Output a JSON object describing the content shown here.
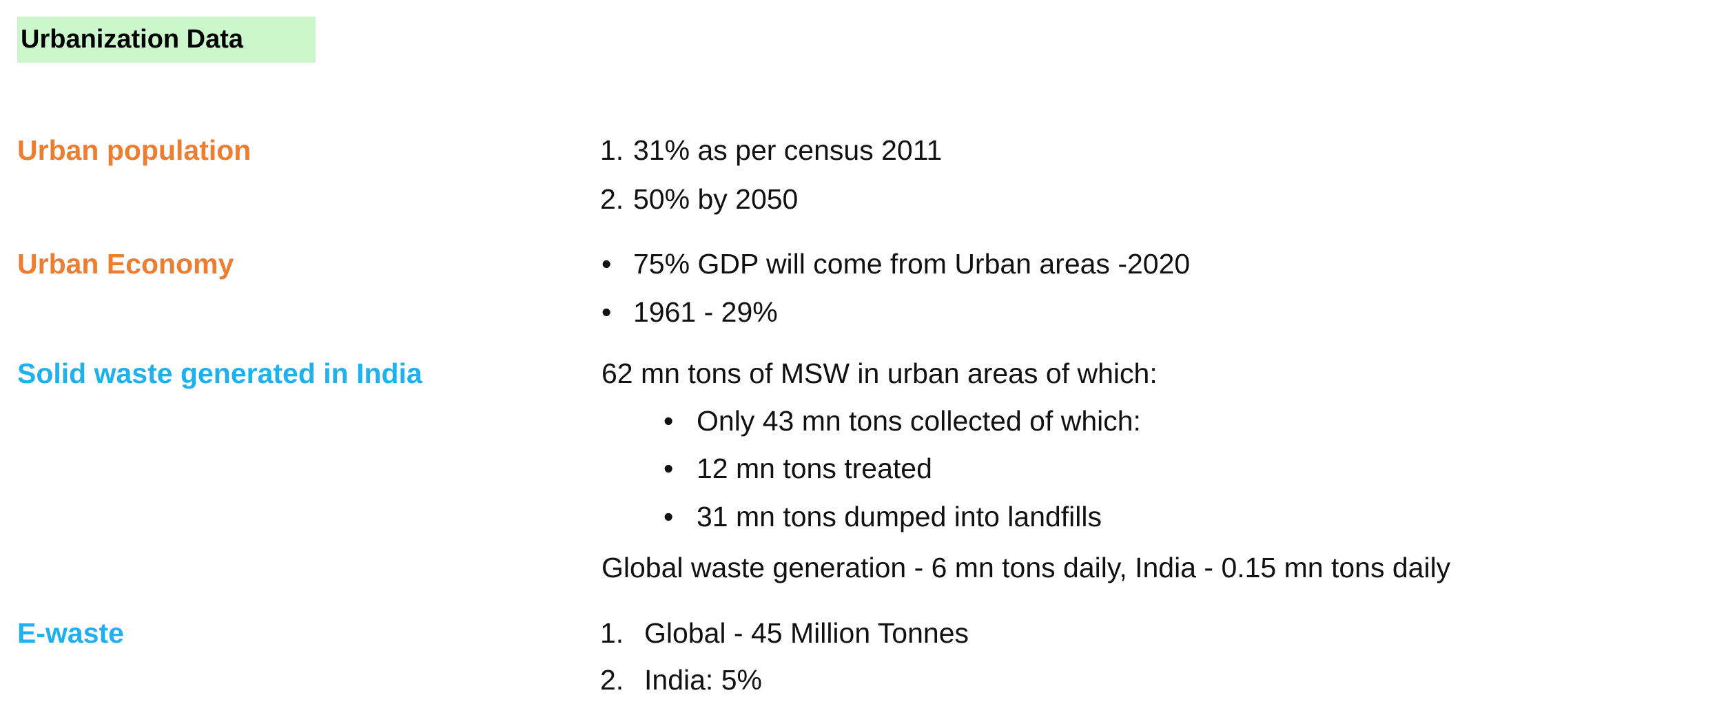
{
  "title": "Urbanization Data",
  "colors": {
    "title_highlight": "#ccf6cc",
    "orange_label": "#ed7d31",
    "blue_label": "#1fb0ee",
    "text": "#111111"
  },
  "sections": [
    {
      "label": "Urban population",
      "items": [
        {
          "marker": "1.",
          "text": "31% as per census 2011"
        },
        {
          "marker": "2.",
          "text": "50% by 2050"
        }
      ]
    },
    {
      "label": "Urban Economy",
      "items": [
        {
          "marker": "•",
          "text": "75% GDP will come from Urban areas -2020"
        },
        {
          "marker": "•",
          "text": "1961 - 29%"
        }
      ]
    },
    {
      "label": "Solid waste generated in India",
      "intro": "62 mn tons of MSW in urban areas of which:",
      "items": [
        {
          "marker": "•",
          "text": "Only 43 mn tons collected of which:"
        },
        {
          "marker": "•",
          "text": "12 mn tons treated"
        },
        {
          "marker": "•",
          "text": "31 mn tons dumped into landfills"
        }
      ],
      "outro": "Global waste generation - 6 mn tons daily, India - 0.15 mn tons daily"
    },
    {
      "label": "E-waste",
      "items": [
        {
          "marker": "1.",
          "text": "Global - 45 Million Tonnes"
        },
        {
          "marker": "2.",
          "text": "India: 5%"
        }
      ]
    }
  ]
}
